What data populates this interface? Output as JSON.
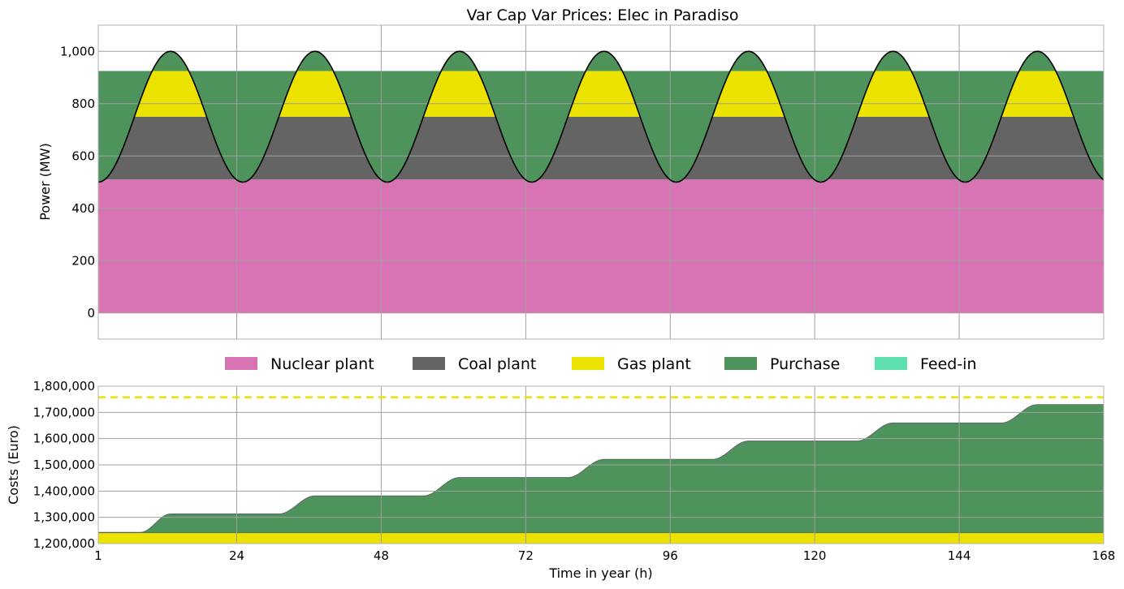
{
  "chart_data": [
    {
      "id": "power",
      "type": "area",
      "title": "Var Cap Var Prices: Elec in Paradiso",
      "xlabel": "",
      "ylabel": "Power (MW)",
      "xlim": [
        1,
        168
      ],
      "ylim": [
        -100,
        1100
      ],
      "x_ticks": [
        1,
        24,
        48,
        72,
        96,
        120,
        144,
        168
      ],
      "y_ticks": [
        0,
        200,
        400,
        600,
        800,
        1000
      ],
      "y_tick_labels": [
        "0",
        "200",
        "400",
        "600",
        "800",
        "1,000"
      ],
      "grid": true,
      "stacked": true,
      "period_hours": 24,
      "demand_curve": {
        "min": 500,
        "max": 1000,
        "peak_hours": [
          13,
          37,
          61,
          85,
          109,
          133,
          157
        ],
        "trough_hours": [
          1,
          25,
          49,
          73,
          97,
          121,
          145
        ]
      },
      "series": [
        {
          "name": "Nuclear plant",
          "capacity": 510,
          "color": "#d874b4"
        },
        {
          "name": "Coal plant",
          "capacity": 240,
          "color": "#646464"
        },
        {
          "name": "Gas plant",
          "capacity": 175,
          "color": "#ebe200"
        },
        {
          "name": "Purchase",
          "capacity": 75,
          "color": "#4f935c"
        },
        {
          "name": "Feed-in",
          "capacity": 0,
          "color": "#5ee0b0"
        }
      ],
      "demand_line_color": "#000000"
    },
    {
      "id": "costs",
      "type": "area",
      "title": "",
      "xlabel": "Time in year (h)",
      "ylabel": "Costs (Euro)",
      "xlim": [
        1,
        168
      ],
      "ylim": [
        1200000,
        1800000
      ],
      "x_ticks": [
        1,
        24,
        48,
        72,
        96,
        120,
        144,
        168
      ],
      "y_ticks": [
        1200000,
        1300000,
        1400000,
        1500000,
        1600000,
        1700000,
        1800000
      ],
      "y_tick_labels": [
        "1,200,000",
        "1,300,000",
        "1,400,000",
        "1,500,000",
        "1,600,000",
        "1,700,000",
        "1,800,000"
      ],
      "grid": true,
      "base_cost": 1240000,
      "base_cost_color": "#ebe200",
      "cumulative_color": "#4f935c",
      "steps": [
        {
          "start": 8,
          "end": 13,
          "value": 1313000
        },
        {
          "start": 31,
          "end": 37,
          "value": 1382000
        },
        {
          "start": 55,
          "end": 61,
          "value": 1452000
        },
        {
          "start": 79,
          "end": 85,
          "value": 1521000
        },
        {
          "start": 103,
          "end": 109,
          "value": 1591000
        },
        {
          "start": 127,
          "end": 133,
          "value": 1660000
        },
        {
          "start": 151,
          "end": 157,
          "value": 1730000
        }
      ],
      "initial_value": 1243000,
      "reference_line": {
        "value": 1758000,
        "color": "#ebe200",
        "style": "dashed"
      }
    }
  ],
  "legend": {
    "placement": "between-panels",
    "items": [
      {
        "label": "Nuclear plant",
        "color": "#d874b4"
      },
      {
        "label": "Coal plant",
        "color": "#646464"
      },
      {
        "label": "Gas plant",
        "color": "#ebe200"
      },
      {
        "label": "Purchase",
        "color": "#4f935c"
      },
      {
        "label": "Feed-in",
        "color": "#5ee0b0"
      }
    ]
  }
}
